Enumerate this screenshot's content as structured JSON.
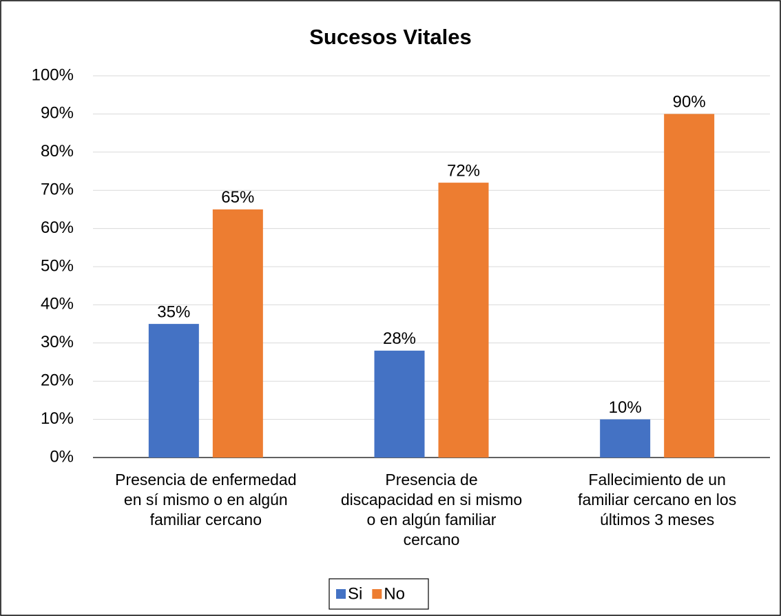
{
  "chart_data": {
    "type": "bar",
    "title": "Sucesos Vitales",
    "categories": [
      "Presencia de enfermedad en sí mismo o en algún familiar cercano",
      "Presencia de discapacidad en si mismo o en algún familiar cercano",
      "Fallecimiento de un familiar cercano en los últimos 3 meses"
    ],
    "series": [
      {
        "name": "Si",
        "color": "#4472c4",
        "values": [
          35,
          28,
          10
        ],
        "value_labels": [
          "35%",
          "28%",
          "10%"
        ]
      },
      {
        "name": "No",
        "color": "#ed7d31",
        "values": [
          65,
          72,
          90
        ],
        "value_labels": [
          "65%",
          "72%",
          "90%"
        ]
      }
    ],
    "ylim": [
      0,
      100
    ],
    "yticks": [
      {
        "value": 0,
        "label": "0%"
      },
      {
        "value": 10,
        "label": "10%"
      },
      {
        "value": 20,
        "label": "20%"
      },
      {
        "value": 30,
        "label": "30%"
      },
      {
        "value": 40,
        "label": "40%"
      },
      {
        "value": 50,
        "label": "50%"
      },
      {
        "value": 60,
        "label": "60%"
      },
      {
        "value": 70,
        "label": "70%"
      },
      {
        "value": 80,
        "label": "80%"
      },
      {
        "value": 90,
        "label": "90%"
      },
      {
        "value": 100,
        "label": "100%"
      }
    ],
    "grid": true,
    "legend": "bottom"
  }
}
